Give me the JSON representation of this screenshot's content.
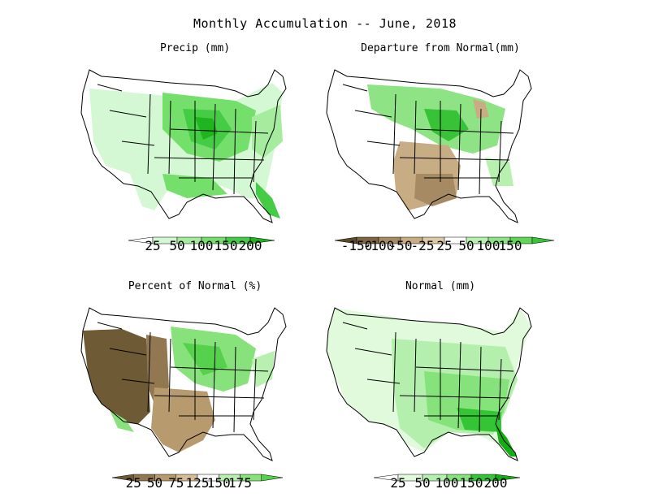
{
  "title": "Monthly Accumulation -- June, 2018",
  "panels": [
    {
      "id": "precip",
      "title": "Precip (mm)",
      "type": "precip",
      "legend": {
        "ticks": [
          "25",
          "50",
          "100",
          "150",
          "200"
        ],
        "colors": [
          "#ffffff",
          "#d4f7d4",
          "#a6ec9e",
          "#74df6b",
          "#44cc44",
          "#1fb51f"
        ]
      }
    },
    {
      "id": "departure",
      "title": "Departure from Normal(mm)",
      "type": "departure",
      "legend": {
        "ticks": [
          "-150",
          "-100",
          "-50",
          "-25",
          "25",
          "50",
          "100",
          "150"
        ],
        "colors": [
          "#5c4a2a",
          "#7c6540",
          "#a58a63",
          "#c8ad84",
          "#dcc9a6",
          "#ffffff",
          "#b8f0b0",
          "#8ee485",
          "#5fd655",
          "#37c237"
        ]
      }
    },
    {
      "id": "percent",
      "title": "Percent of Normal (%)",
      "type": "percent",
      "legend": {
        "ticks": [
          "25",
          "50",
          "75",
          "125",
          "150",
          "175"
        ],
        "colors": [
          "#6e5a35",
          "#927850",
          "#b79a6e",
          "#d6bd93",
          "#ffffff",
          "#b8f0b0",
          "#88e27c",
          "#55d14b"
        ]
      }
    },
    {
      "id": "normal",
      "title": "Normal (mm)",
      "type": "normal",
      "legend": {
        "ticks": [
          "25",
          "50",
          "100",
          "150",
          "200"
        ],
        "colors": [
          "#ffffff",
          "#e2fadc",
          "#b5ef ad",
          "#86e27a",
          "#34c534",
          "#14ad14"
        ]
      }
    }
  ],
  "colors": {
    "outline": "#000000",
    "green_light": "#c9f5c2",
    "green_mid": "#86e27a",
    "green_dark": "#3cc13c",
    "green_deep": "#14a814",
    "brown_light": "#cdb18a",
    "brown_mid": "#a7885f",
    "brown_dark": "#6e5a35"
  }
}
